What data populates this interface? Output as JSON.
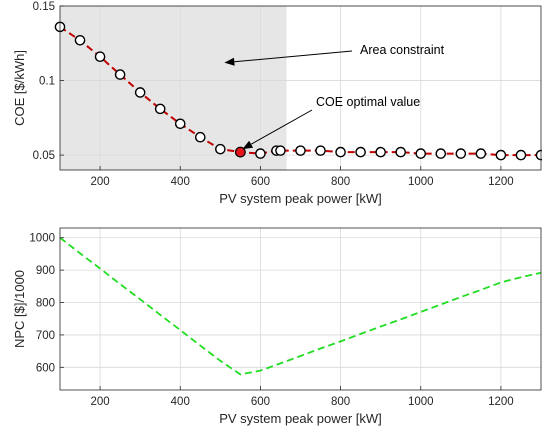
{
  "chart_data": [
    {
      "type": "line",
      "xlabel": "PV system peak power [kW]",
      "ylabel": "COE [$/kWh]",
      "xlim": [
        100,
        1300
      ],
      "ylim": [
        0.04,
        0.15
      ],
      "xticks": [
        200,
        400,
        600,
        800,
        1000,
        1200
      ],
      "yticks": [
        0.05,
        0.1,
        0.15
      ],
      "ytick_labels": [
        "0.05",
        "0.1",
        "0.15"
      ],
      "grid": true,
      "shaded_region": {
        "x": [
          100,
          665
        ],
        "meaning": "Area constraint"
      },
      "series": [
        {
          "line_color": "#c00000",
          "marker": "open-circle",
          "x": [
            100,
            150,
            200,
            250,
            300,
            350,
            400,
            450,
            500,
            550,
            600,
            640,
            650,
            700,
            750,
            800,
            850,
            900,
            950,
            1000,
            1050,
            1100,
            1150,
            1200,
            1250,
            1300
          ],
          "y": [
            0.136,
            0.127,
            0.116,
            0.104,
            0.092,
            0.081,
            0.071,
            0.062,
            0.054,
            0.052,
            0.051,
            0.053,
            0.053,
            0.053,
            0.053,
            0.052,
            0.052,
            0.052,
            0.052,
            0.051,
            0.051,
            0.051,
            0.051,
            0.05,
            0.05,
            0.05
          ]
        }
      ],
      "optimal_point": {
        "x": 550,
        "y": 0.052,
        "color": "#e8161a"
      },
      "annotations": [
        {
          "text": "Area constraint",
          "arrow_to": [
            510,
            0.112
          ]
        },
        {
          "text": "COE optimal value",
          "arrow_to": [
            555,
            0.054
          ]
        }
      ]
    },
    {
      "type": "line",
      "xlabel": "PV system peak power [kW]",
      "ylabel": "NPC [$]/1000",
      "xlim": [
        100,
        1300
      ],
      "ylim": [
        530,
        1030
      ],
      "xticks": [
        200,
        400,
        600,
        800,
        1000,
        1200
      ],
      "yticks": [
        600,
        700,
        800,
        900,
        1000
      ],
      "grid": true,
      "series": [
        {
          "line_color": "#22dd22",
          "line_style": "dashed",
          "x": [
            100,
            150,
            200,
            250,
            300,
            350,
            400,
            450,
            500,
            550,
            600,
            650,
            700,
            750,
            800,
            850,
            900,
            950,
            1000,
            1050,
            1100,
            1150,
            1200,
            1250,
            1300
          ],
          "y": [
            1000,
            952,
            905,
            857,
            810,
            762,
            715,
            667,
            620,
            578,
            590,
            612,
            635,
            658,
            680,
            703,
            726,
            748,
            771,
            794,
            817,
            839,
            862,
            878,
            892
          ]
        }
      ]
    }
  ]
}
